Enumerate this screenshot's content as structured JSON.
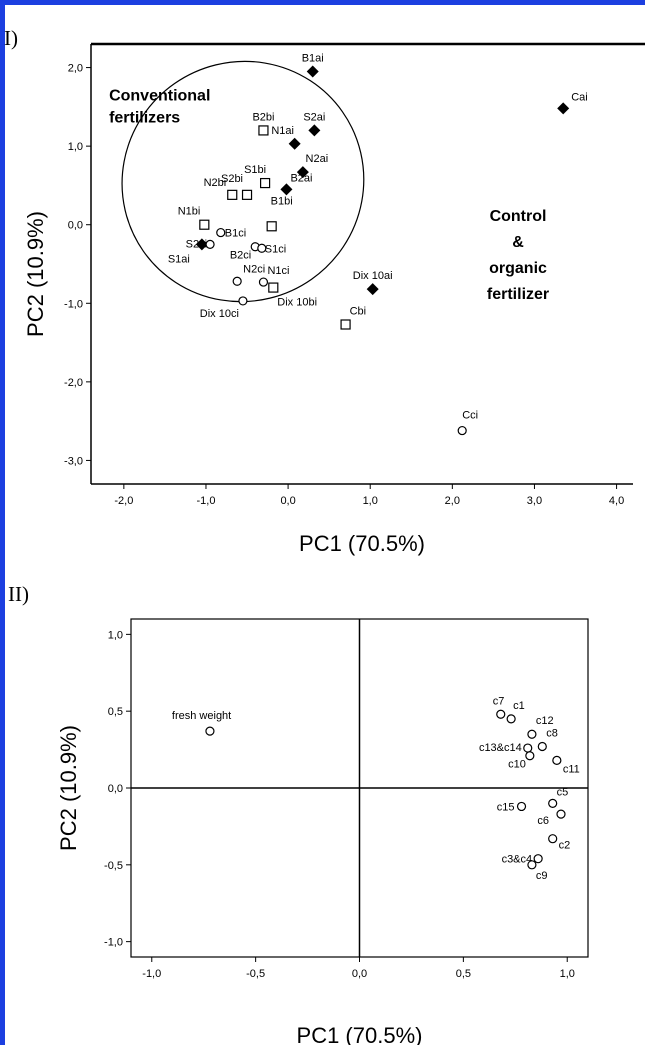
{
  "colors": {
    "frame": "#1c3fe0",
    "ink": "#000000",
    "background": "#ffffff"
  },
  "panel_labels": {
    "top": "I)",
    "bottom": "II)"
  },
  "chart_data": [
    {
      "type": "scatter",
      "title": "",
      "xlabel": "PC1 (70.5%)",
      "ylabel": "PC2 (10.9%)",
      "xlim": [
        -2.4,
        4.2
      ],
      "ylim": [
        -3.3,
        2.3
      ],
      "x_ticks": [
        {
          "v": -2.0,
          "label": "-2,0"
        },
        {
          "v": -1.0,
          "label": "-1,0"
        },
        {
          "v": 0.0,
          "label": "0,0"
        },
        {
          "v": 1.0,
          "label": "1,0"
        },
        {
          "v": 2.0,
          "label": "2,0"
        },
        {
          "v": 3.0,
          "label": "3,0"
        },
        {
          "v": 4.0,
          "label": "4,0"
        }
      ],
      "y_ticks": [
        {
          "v": 2.0,
          "label": "2,0"
        },
        {
          "v": 1.0,
          "label": "1,0"
        },
        {
          "v": 0.0,
          "label": "0,0"
        },
        {
          "v": -1.0,
          "label": "-1,0"
        },
        {
          "v": -2.0,
          "label": "-2,0"
        },
        {
          "v": -3.0,
          "label": "-3,0"
        }
      ],
      "grid": false,
      "series": [
        {
          "marker": "filled-diamond",
          "points": [
            {
              "label": "B1ai",
              "x": 0.3,
              "y": 1.95
            },
            {
              "label": "S2ai",
              "x": 0.32,
              "y": 1.2
            },
            {
              "label": "N1ai",
              "x": 0.08,
              "y": 1.03
            },
            {
              "label": "N2ai",
              "x": 0.18,
              "y": 0.67
            },
            {
              "label": "B2ai",
              "x": -0.02,
              "y": 0.45
            },
            {
              "label": "S1ai",
              "x": -1.05,
              "y": -0.25
            },
            {
              "label": "Dix 10ai",
              "x": 1.03,
              "y": -0.82
            },
            {
              "label": "Cai",
              "x": 3.35,
              "y": 1.48
            }
          ]
        },
        {
          "marker": "open-square",
          "points": [
            {
              "label": "B2bi",
              "x": -0.3,
              "y": 1.2
            },
            {
              "label": "S1bi",
              "x": -0.28,
              "y": 0.53
            },
            {
              "label": "N2bi",
              "x": -0.68,
              "y": 0.38
            },
            {
              "label": "S2bi",
              "x": -0.5,
              "y": 0.38
            },
            {
              "label": "B1bi",
              "x": -0.2,
              "y": -0.02
            },
            {
              "label": "N1bi",
              "x": -1.02,
              "y": 0.0
            },
            {
              "label": "Dix 10bi",
              "x": -0.18,
              "y": -0.8
            },
            {
              "label": "Cbi",
              "x": 0.7,
              "y": -1.27
            }
          ]
        },
        {
          "marker": "open-circle",
          "points": [
            {
              "label": "S2ci",
              "x": -0.95,
              "y": -0.25
            },
            {
              "label": "B1ci",
              "x": -0.82,
              "y": -0.1
            },
            {
              "label": "B2ci",
              "x": -0.4,
              "y": -0.28
            },
            {
              "label": "S1ci",
              "x": -0.32,
              "y": -0.3
            },
            {
              "label": "N2ci",
              "x": -0.62,
              "y": -0.72
            },
            {
              "label": "N1ci",
              "x": -0.3,
              "y": -0.73
            },
            {
              "label": "Dix 10ci",
              "x": -0.55,
              "y": -0.97
            },
            {
              "label": "Cci",
              "x": 2.12,
              "y": -2.62
            }
          ]
        }
      ],
      "annotations": [
        {
          "lines": [
            "Conventional",
            "fertilizers"
          ],
          "x": -2.18,
          "y": 1.58
        },
        {
          "lines": [
            "Control",
            "&",
            "organic",
            "fertilizer"
          ],
          "x": 2.8,
          "y": 0.05
        }
      ],
      "ellipse": {
        "cx": -0.55,
        "cy": 0.55,
        "rx": 1.48,
        "ry": 1.52
      }
    },
    {
      "type": "scatter",
      "title": "",
      "xlabel": "PC1 (70.5%)",
      "ylabel": "PC2 (10.9%)",
      "xlim": [
        -1.1,
        1.1
      ],
      "ylim": [
        -1.1,
        1.1
      ],
      "x_ticks": [
        {
          "v": -1.0,
          "label": "-1,0"
        },
        {
          "v": -0.5,
          "label": "-0,5"
        },
        {
          "v": 0.0,
          "label": "0,0"
        },
        {
          "v": 0.5,
          "label": "0,5"
        },
        {
          "v": 1.0,
          "label": "1,0"
        }
      ],
      "y_ticks": [
        {
          "v": 1.0,
          "label": "1,0"
        },
        {
          "v": 0.5,
          "label": "0,5"
        },
        {
          "v": 0.0,
          "label": "0,0"
        },
        {
          "v": -0.5,
          "label": "-0,5"
        },
        {
          "v": -1.0,
          "label": "-1,0"
        }
      ],
      "grid": false,
      "reference_lines": {
        "x": 0,
        "y": 0
      },
      "points": [
        {
          "label": "fresh weight",
          "x": -0.72,
          "y": 0.37
        },
        {
          "label": "c7",
          "x": 0.68,
          "y": 0.48
        },
        {
          "label": "c1",
          "x": 0.73,
          "y": 0.45
        },
        {
          "label": "c12",
          "x": 0.83,
          "y": 0.35
        },
        {
          "label": "c8",
          "x": 0.88,
          "y": 0.27
        },
        {
          "label": "c13&c14",
          "x": 0.81,
          "y": 0.26
        },
        {
          "label": "c10",
          "x": 0.82,
          "y": 0.21
        },
        {
          "label": "c11",
          "x": 0.95,
          "y": 0.18
        },
        {
          "label": "c5",
          "x": 0.93,
          "y": -0.1
        },
        {
          "label": "c15",
          "x": 0.78,
          "y": -0.12
        },
        {
          "label": "c6",
          "x": 0.97,
          "y": -0.17
        },
        {
          "label": "c2",
          "x": 0.93,
          "y": -0.33
        },
        {
          "label": "c3&c4",
          "x": 0.86,
          "y": -0.46
        },
        {
          "label": "c9",
          "x": 0.83,
          "y": -0.5
        }
      ]
    }
  ]
}
